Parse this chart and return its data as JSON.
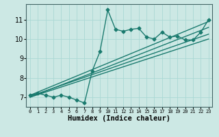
{
  "xlabel": "Humidex (Indice chaleur)",
  "ylabel": "",
  "bg_color": "#cce8e4",
  "line_color": "#1a7a6e",
  "grid_color": "#aad8d4",
  "x_data": [
    0,
    1,
    2,
    3,
    4,
    5,
    6,
    7,
    8,
    9,
    10,
    11,
    12,
    13,
    14,
    15,
    16,
    17,
    18,
    19,
    20,
    21,
    22,
    23
  ],
  "y_data": [
    7.1,
    7.2,
    7.1,
    7.0,
    7.1,
    7.0,
    6.85,
    6.7,
    8.35,
    9.35,
    11.5,
    10.5,
    10.4,
    10.5,
    10.55,
    10.1,
    10.0,
    10.35,
    10.1,
    10.15,
    9.95,
    9.95,
    10.35,
    11.0
  ],
  "reg_lines": [
    {
      "x": [
        0,
        23
      ],
      "y": [
        7.1,
        10.9
      ]
    },
    {
      "x": [
        0,
        23
      ],
      "y": [
        7.0,
        10.6
      ]
    },
    {
      "x": [
        0,
        23
      ],
      "y": [
        7.05,
        10.25
      ]
    },
    {
      "x": [
        0,
        23
      ],
      "y": [
        7.0,
        10.0
      ]
    }
  ],
  "xlim": [
    -0.5,
    23.5
  ],
  "ylim": [
    6.5,
    11.8
  ],
  "yticks": [
    7,
    8,
    9,
    10,
    11
  ],
  "xticks": [
    0,
    1,
    2,
    3,
    4,
    5,
    6,
    7,
    8,
    9,
    10,
    11,
    12,
    13,
    14,
    15,
    16,
    17,
    18,
    19,
    20,
    21,
    22,
    23
  ],
  "marker": "D",
  "markersize": 2.5,
  "linewidth": 1.0,
  "xtick_fontsize": 5.0,
  "ytick_fontsize": 7.0,
  "label_fontsize": 7.5
}
